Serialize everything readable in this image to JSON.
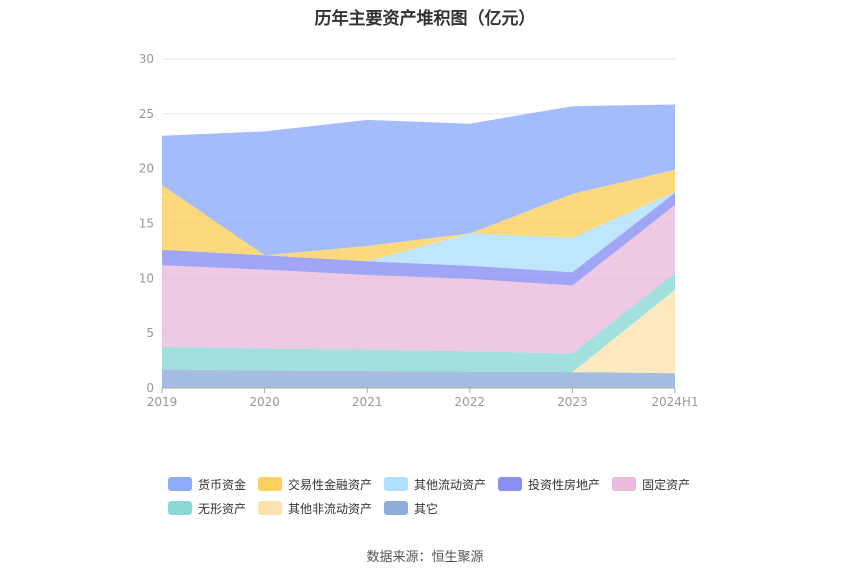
{
  "title": "历年主要资产堆积图（亿元）",
  "source": "数据来源：恒生聚源",
  "chart_data": {
    "type": "area",
    "stacked": true,
    "categories": [
      "2019",
      "2020",
      "2021",
      "2022",
      "2023",
      "2024H1"
    ],
    "ylim": [
      0,
      30
    ],
    "yticks": [
      0,
      5,
      10,
      15,
      20,
      25,
      30
    ],
    "grid": true,
    "legend_position": "bottom",
    "series": [
      {
        "name": "其它",
        "color": "#8fadd9",
        "values": [
          1.7,
          1.6,
          1.55,
          1.5,
          1.45,
          1.35
        ]
      },
      {
        "name": "其他非流动资产",
        "color": "#fde2b0",
        "values": [
          0,
          0,
          0,
          0,
          0,
          7.6
        ]
      },
      {
        "name": "无形资产",
        "color": "#8ad8d4",
        "values": [
          2.05,
          2.0,
          1.95,
          1.85,
          1.7,
          1.55
        ]
      },
      {
        "name": "固定资产",
        "color": "#e9bcdc",
        "values": [
          7.45,
          7.2,
          6.8,
          6.6,
          6.2,
          6.2
        ]
      },
      {
        "name": "投资性房地产",
        "color": "#8a8ff2",
        "values": [
          1.4,
          1.3,
          1.25,
          1.2,
          1.2,
          1.1
        ]
      },
      {
        "name": "其他流动资产",
        "color": "#aee0fb",
        "values": [
          0,
          0,
          0,
          2.95,
          3.15,
          0.1
        ]
      },
      {
        "name": "交易性金融资产",
        "color": "#fccf5e",
        "values": [
          5.9,
          0,
          1.4,
          0,
          4.0,
          2.0
        ]
      },
      {
        "name": "货币资金",
        "color": "#8fabfb",
        "values": [
          4.5,
          11.3,
          11.5,
          10.0,
          8.0,
          5.95
        ]
      }
    ],
    "legend_order": [
      "货币资金",
      "交易性金融资产",
      "其他流动资产",
      "投资性房地产",
      "固定资产",
      "无形资产",
      "其他非流动资产",
      "其它"
    ]
  }
}
